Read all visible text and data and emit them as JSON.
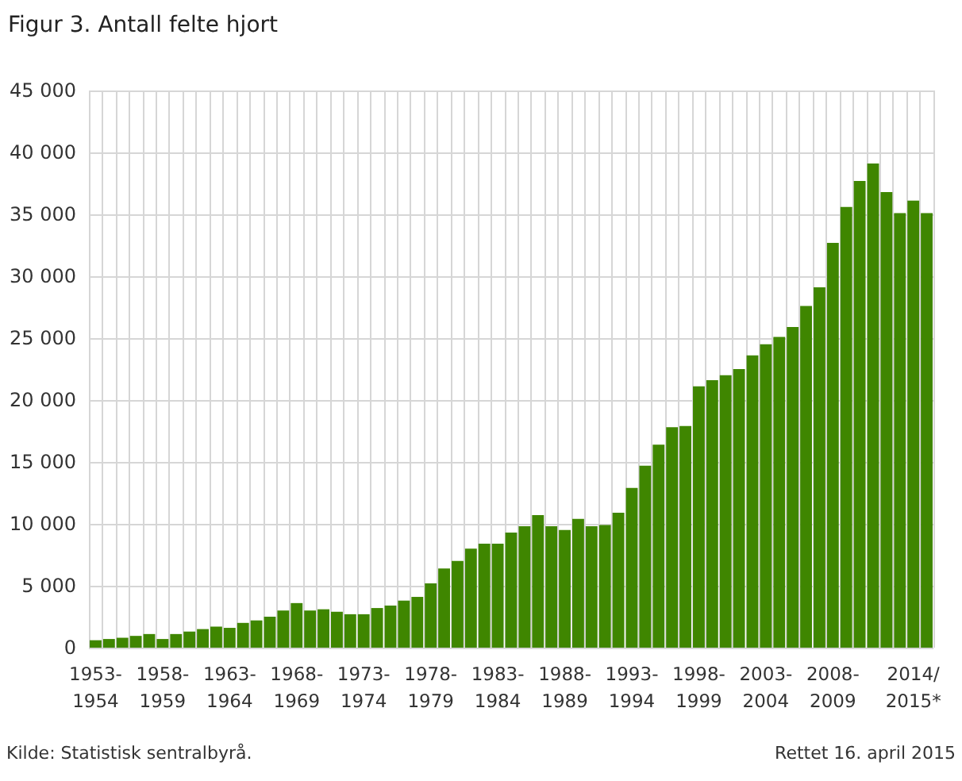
{
  "chart_data": {
    "type": "bar",
    "title": "Figur 3. Antall felte hjort",
    "categories": [
      "1953-1954",
      null,
      null,
      null,
      null,
      "1958-1959",
      null,
      null,
      null,
      null,
      "1963-1964",
      null,
      null,
      null,
      null,
      "1968-1969",
      null,
      null,
      null,
      null,
      "1973-1974",
      null,
      null,
      null,
      null,
      "1978-1979",
      null,
      null,
      null,
      null,
      "1983-1984",
      null,
      null,
      null,
      null,
      "1988-1989",
      null,
      null,
      null,
      null,
      "1993-1994",
      null,
      null,
      null,
      null,
      "1998-1999",
      null,
      null,
      null,
      null,
      "2003-2004",
      null,
      null,
      null,
      null,
      "2008-2009",
      null,
      null,
      null,
      null,
      null,
      "2014/2015*",
      null
    ],
    "values": [
      600,
      700,
      800,
      950,
      1100,
      700,
      1100,
      1300,
      1500,
      1700,
      1600,
      2000,
      2200,
      2500,
      3000,
      3600,
      3000,
      3100,
      2900,
      2700,
      2700,
      3200,
      3400,
      3800,
      4100,
      5200,
      6400,
      7000,
      8000,
      8400,
      8400,
      9300,
      9800,
      10700,
      9800,
      9500,
      10400,
      9800,
      9900,
      10900,
      12900,
      14700,
      16400,
      17800,
      17900,
      21100,
      21600,
      22000,
      22500,
      23600,
      24500,
      25100,
      25900,
      27600,
      29100,
      32700,
      35600,
      37700,
      39100,
      36800,
      35100,
      36100,
      35100
    ],
    "color": "#3f8600",
    "ylim": [
      0,
      45000
    ],
    "yticks": [
      0,
      {
        "value": 5000,
        "label": "5 000"
      },
      {
        "value": 10000,
        "label": "10 000"
      },
      {
        "value": 15000,
        "label": "15 000"
      },
      {
        "value": 20000,
        "label": "20 000"
      },
      {
        "value": 25000,
        "label": "25 000"
      },
      {
        "value": 30000,
        "label": "30 000"
      },
      {
        "value": 35000,
        "label": "35 000"
      },
      {
        "value": 40000,
        "label": "40 000"
      },
      {
        "value": 45000,
        "label": "45 000"
      }
    ],
    "grid": true,
    "annotations": [
      "Kilde: Statistisk sentralbyrå.",
      "Rettet 16. april 2015"
    ]
  }
}
